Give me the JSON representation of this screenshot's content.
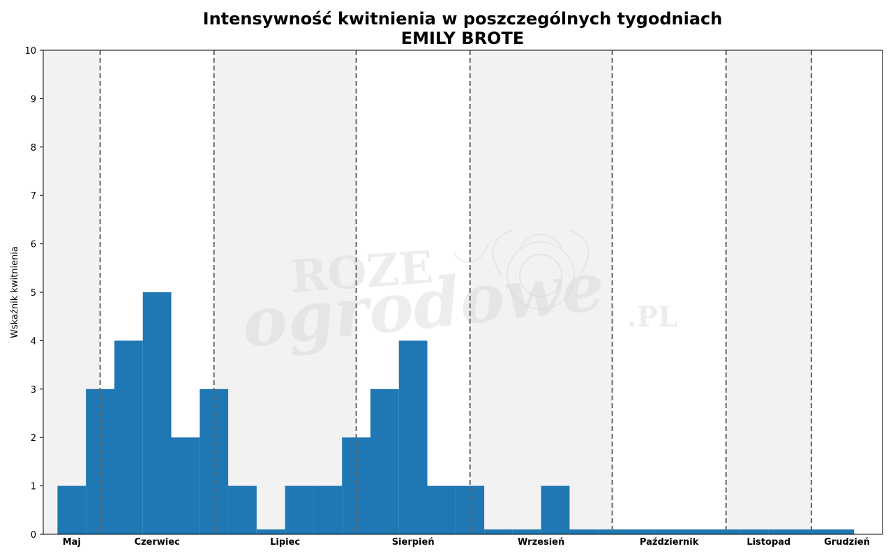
{
  "chart_data": {
    "type": "bar",
    "title": "Intensywność kwitnienia w poszczególnych tygodniach",
    "subtitle": "EMILY BROTE",
    "ylabel": "Wskaźnik kwitnienia",
    "xlabel": "",
    "ylim": [
      0,
      10
    ],
    "yticks": [
      0,
      1,
      2,
      3,
      4,
      5,
      6,
      7,
      8,
      9,
      10
    ],
    "weeks_range": [
      18,
      47.5
    ],
    "values": [
      {
        "week": 19,
        "value": 1
      },
      {
        "week": 20,
        "value": 3
      },
      {
        "week": 21,
        "value": 4
      },
      {
        "week": 22,
        "value": 5
      },
      {
        "week": 23,
        "value": 2
      },
      {
        "week": 24,
        "value": 3
      },
      {
        "week": 25,
        "value": 1
      },
      {
        "week": 26,
        "value": 0.1
      },
      {
        "week": 27,
        "value": 1
      },
      {
        "week": 28,
        "value": 1
      },
      {
        "week": 29,
        "value": 2
      },
      {
        "week": 30,
        "value": 3
      },
      {
        "week": 31,
        "value": 4
      },
      {
        "week": 32,
        "value": 1
      },
      {
        "week": 33,
        "value": 1
      },
      {
        "week": 34,
        "value": 0.1
      },
      {
        "week": 35,
        "value": 0.1
      },
      {
        "week": 36,
        "value": 1
      },
      {
        "week": 37,
        "value": 0.1
      },
      {
        "week": 38,
        "value": 0.1
      },
      {
        "week": 39,
        "value": 0.1
      },
      {
        "week": 40,
        "value": 0.1
      },
      {
        "week": 41,
        "value": 0.1
      },
      {
        "week": 42,
        "value": 0.1
      },
      {
        "week": 43,
        "value": 0.1
      },
      {
        "week": 44,
        "value": 0.1
      },
      {
        "week": 45,
        "value": 0.1
      },
      {
        "week": 46,
        "value": 0.1
      }
    ],
    "months": [
      {
        "name": "Maj",
        "start": 18,
        "end": 20,
        "shaded": true
      },
      {
        "name": "Czerwiec",
        "start": 20,
        "end": 24,
        "shaded": false
      },
      {
        "name": "Lipiec",
        "start": 24,
        "end": 29,
        "shaded": true
      },
      {
        "name": "Sierpień",
        "start": 29,
        "end": 33,
        "shaded": false
      },
      {
        "name": "Wrzesień",
        "start": 33,
        "end": 38,
        "shaded": true
      },
      {
        "name": "Październik",
        "start": 38,
        "end": 42,
        "shaded": false
      },
      {
        "name": "Listopad",
        "start": 42,
        "end": 45,
        "shaded": true
      },
      {
        "name": "Grudzień",
        "start": 45,
        "end": 47.5,
        "shaded": false
      }
    ],
    "bar_color": "#1f77b4",
    "shade_color": "#f2f2f2",
    "divider_color": "#666666",
    "grid": false,
    "legend": "none"
  },
  "watermark": {
    "line1": "ROZE",
    "line2": "ogrodowe",
    "line3": ".PL"
  }
}
